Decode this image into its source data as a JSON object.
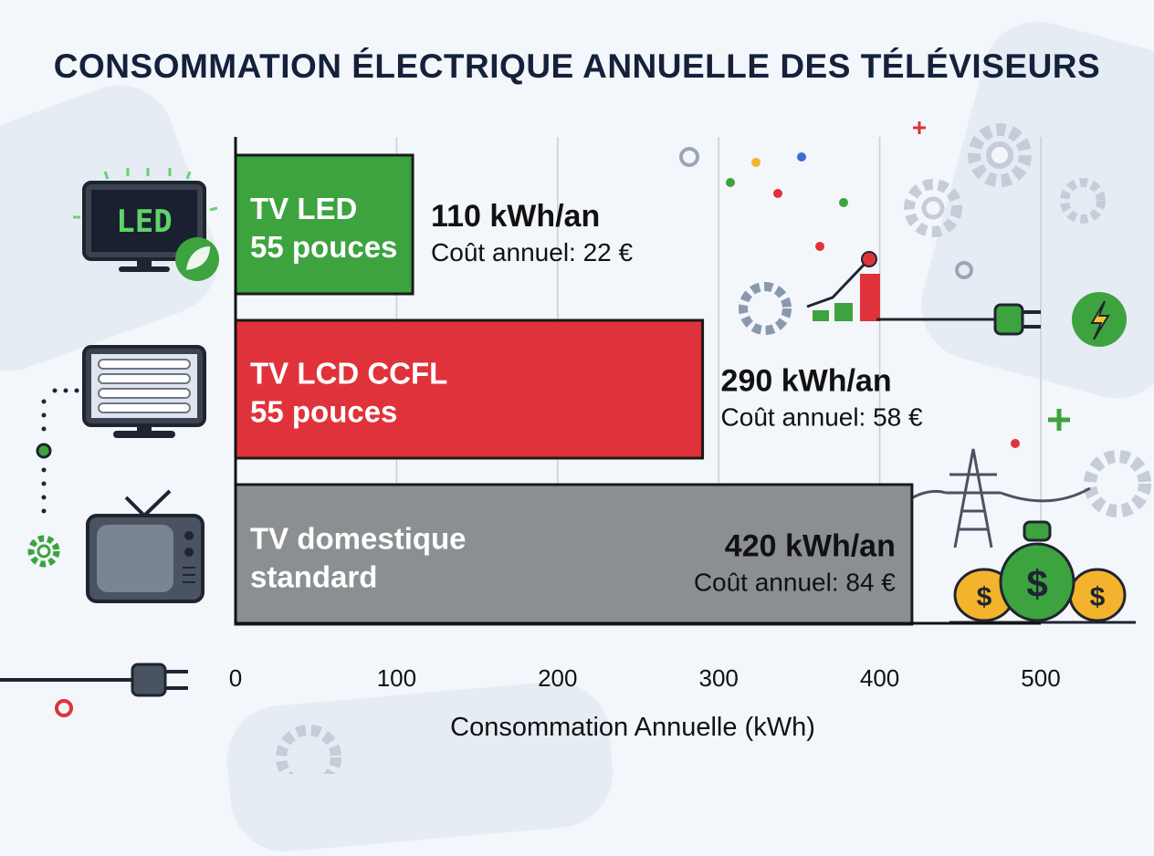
{
  "colors": {
    "led": "#3ca33f",
    "lcd": "#e0323a",
    "standard": "#8c8f92",
    "axis": "#111111",
    "grid": "#c9ced6",
    "title": "#14213a"
  },
  "icons": [
    "led-tv-icon",
    "leaf-icon",
    "lcd-ccfl-tv-icon",
    "retro-tv-icon",
    "gear-icon",
    "plug-icon",
    "lightning-icon",
    "power-pylon-icon",
    "money-bag-icon",
    "growth-chart-icon"
  ],
  "decor": {
    "led_screen_text": "LED"
  },
  "chart_data": {
    "type": "bar",
    "orientation": "horizontal",
    "title": "CONSOMMATION ÉLECTRIQUE ANNUELLE DES TÉLÉVISEURS",
    "xlabel": "Consommation Annuelle (kWh)",
    "xlim": [
      0,
      500
    ],
    "xticks": [
      "0",
      "100",
      "200",
      "300",
      "400",
      "500"
    ],
    "grid": true,
    "bars": [
      {
        "key": "led",
        "line1": "TV LED",
        "line2": "55 pouces",
        "value": 110,
        "value_label": "110 kWh/an",
        "cost_label": "Coût annuel: 22 €"
      },
      {
        "key": "lcd",
        "line1": "TV LCD CCFL",
        "line2": "55 pouces",
        "value": 290,
        "value_label": "290 kWh/an",
        "cost_label": "Coût annuel: 58 €"
      },
      {
        "key": "standard",
        "line1": "TV domestique",
        "line2": "standard",
        "value": 420,
        "value_label": "420 kWh/an",
        "cost_label": "Coût annuel: 84 €"
      }
    ]
  }
}
